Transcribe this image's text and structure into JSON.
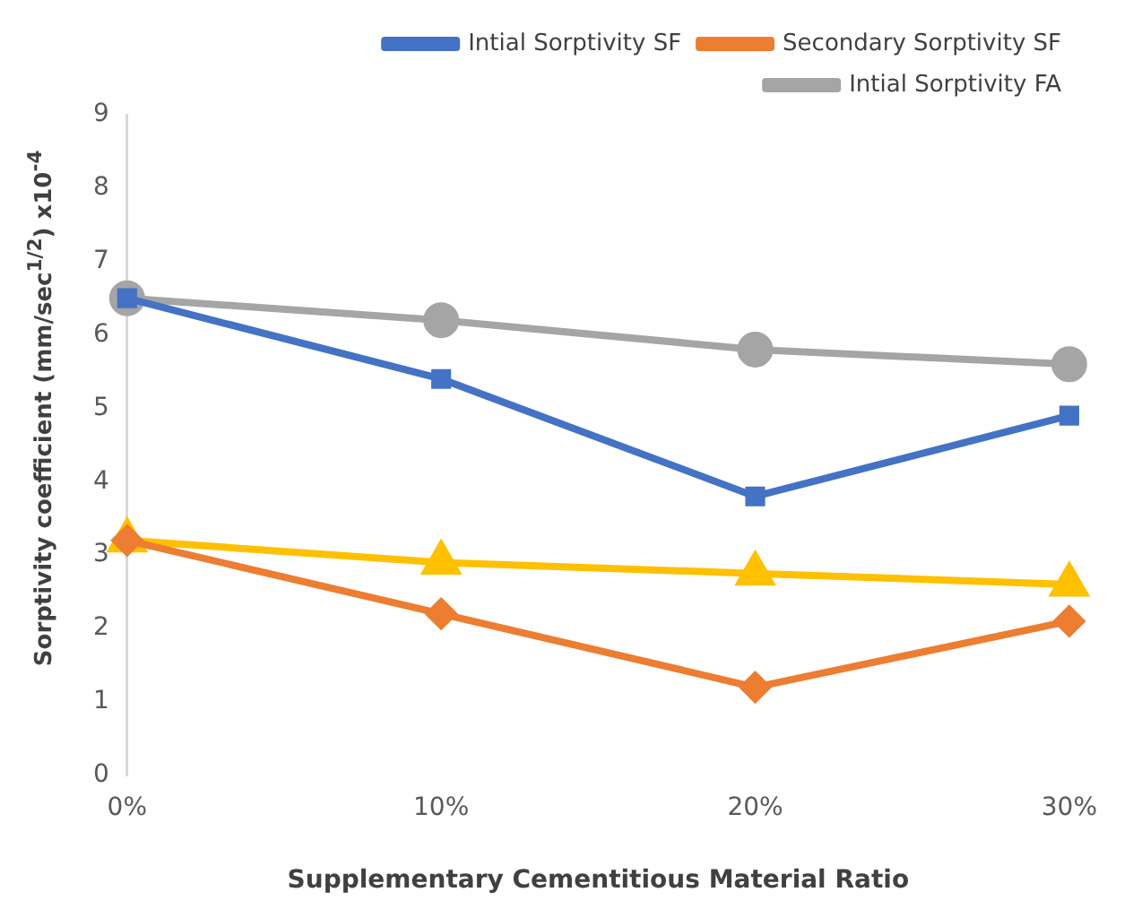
{
  "chart_data": {
    "type": "line",
    "xlabel": "Supplementary Cementitious Material Ratio",
    "ylabel": "Sorptivity coefficient (mm/sec$^{1/2}$) x10$^{-4}$",
    "categories": [
      "0%",
      "10%",
      "20%",
      "30%"
    ],
    "series": [
      {
        "name": "Intial Sorptivity SF",
        "color": "#4472c4",
        "marker": "square",
        "values": [
          6.5,
          5.4,
          3.8,
          4.9
        ]
      },
      {
        "name": "Secondary Sorptivity SF",
        "color": "#ed7d31",
        "marker": "diamond",
        "values": [
          3.2,
          2.2,
          1.2,
          2.1
        ]
      },
      {
        "name": "Intial Sorptivity FA",
        "color": "#a5a5a5",
        "marker": "circle",
        "values": [
          6.5,
          6.2,
          5.8,
          5.6
        ]
      },
      {
        "color": "#ffc000",
        "marker": "triangle",
        "values": [
          3.2,
          2.9,
          2.75,
          2.6
        ]
      }
    ],
    "ylim": [
      0,
      9
    ],
    "yticks": [
      0,
      1,
      2,
      3,
      4,
      5,
      6,
      7,
      8,
      9
    ],
    "grid": false,
    "legend": "top right"
  }
}
